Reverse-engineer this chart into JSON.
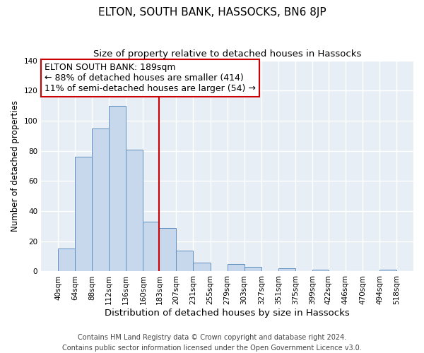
{
  "title": "ELTON, SOUTH BANK, HASSOCKS, BN6 8JP",
  "subtitle": "Size of property relative to detached houses in Hassocks",
  "xlabel": "Distribution of detached houses by size in Hassocks",
  "ylabel": "Number of detached properties",
  "bar_edges": [
    40,
    64,
    88,
    112,
    136,
    160,
    183,
    207,
    231,
    255,
    279,
    303,
    327,
    351,
    375,
    399,
    422,
    446,
    470,
    494,
    518
  ],
  "bar_heights": [
    15,
    76,
    95,
    110,
    81,
    33,
    29,
    14,
    6,
    0,
    5,
    3,
    0,
    2,
    0,
    1,
    0,
    0,
    0,
    1
  ],
  "tick_labels": [
    "40sqm",
    "64sqm",
    "88sqm",
    "112sqm",
    "136sqm",
    "160sqm",
    "183sqm",
    "207sqm",
    "231sqm",
    "255sqm",
    "279sqm",
    "303sqm",
    "327sqm",
    "351sqm",
    "375sqm",
    "399sqm",
    "422sqm",
    "446sqm",
    "470sqm",
    "494sqm",
    "518sqm"
  ],
  "bar_color": "#c8d8ec",
  "bar_edgecolor": "#6090c0",
  "vline_x": 183,
  "vline_color": "#cc0000",
  "ylim": [
    0,
    140
  ],
  "yticks": [
    0,
    20,
    40,
    60,
    80,
    100,
    120,
    140
  ],
  "annotation_title": "ELTON SOUTH BANK: 189sqm",
  "annotation_line1": "← 88% of detached houses are smaller (414)",
  "annotation_line2": "11% of semi-detached houses are larger (54) →",
  "annotation_box_color": "#cc0000",
  "footer_line1": "Contains HM Land Registry data © Crown copyright and database right 2024.",
  "footer_line2": "Contains public sector information licensed under the Open Government Licence v3.0.",
  "plot_bg_color": "#e8eef5",
  "fig_bg_color": "#ffffff",
  "grid_color": "#ffffff",
  "title_fontsize": 11,
  "subtitle_fontsize": 9.5,
  "xlabel_fontsize": 9.5,
  "ylabel_fontsize": 8.5,
  "tick_fontsize": 7.5,
  "footer_fontsize": 7,
  "ann_fontsize": 9
}
